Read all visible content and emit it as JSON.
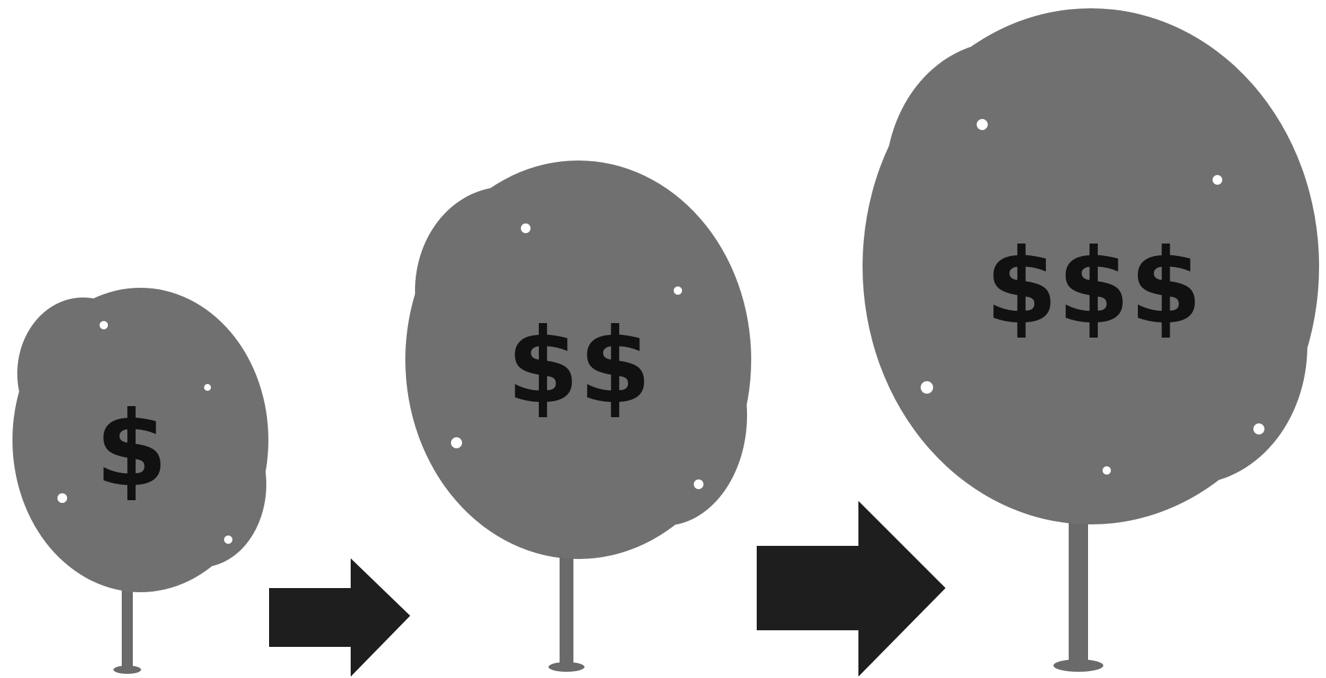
{
  "trees": [
    {
      "label": "$"
    },
    {
      "label": "$$"
    },
    {
      "label": "$$$"
    }
  ]
}
